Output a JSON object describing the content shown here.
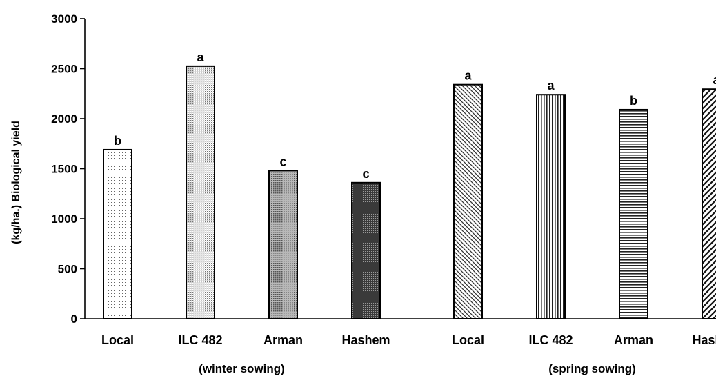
{
  "chart_data": {
    "type": "bar",
    "title": "",
    "ylabel": "(kg/ha.) Biological yield",
    "ylim": [
      0,
      3000
    ],
    "yticks": [
      0,
      500,
      1000,
      1500,
      2000,
      2500,
      3000
    ],
    "grid": false,
    "groups": [
      {
        "label": "(winter sowing)",
        "bars": [
          {
            "category": "Local",
            "value": 1690,
            "letter": "b",
            "pattern": "dots-sparse"
          },
          {
            "category": "ILC 482",
            "value": 2525,
            "letter": "a",
            "pattern": "dots-medium"
          },
          {
            "category": "Arman",
            "value": 1480,
            "letter": "c",
            "pattern": "dots-dense"
          },
          {
            "category": "Hashem",
            "value": 1360,
            "letter": "c",
            "pattern": "dots-dark"
          }
        ]
      },
      {
        "label": "(spring sowing)",
        "bars": [
          {
            "category": "Local",
            "value": 2340,
            "letter": "a",
            "pattern": "diag-backslash"
          },
          {
            "category": "ILC 482",
            "value": 2240,
            "letter": "a",
            "pattern": "vertical-lines"
          },
          {
            "category": "Arman",
            "value": 2090,
            "letter": "b",
            "pattern": "horizontal-lines"
          },
          {
            "category": "Hashem",
            "value": 2295,
            "letter": "a",
            "pattern": "diag-forward"
          }
        ]
      }
    ]
  }
}
